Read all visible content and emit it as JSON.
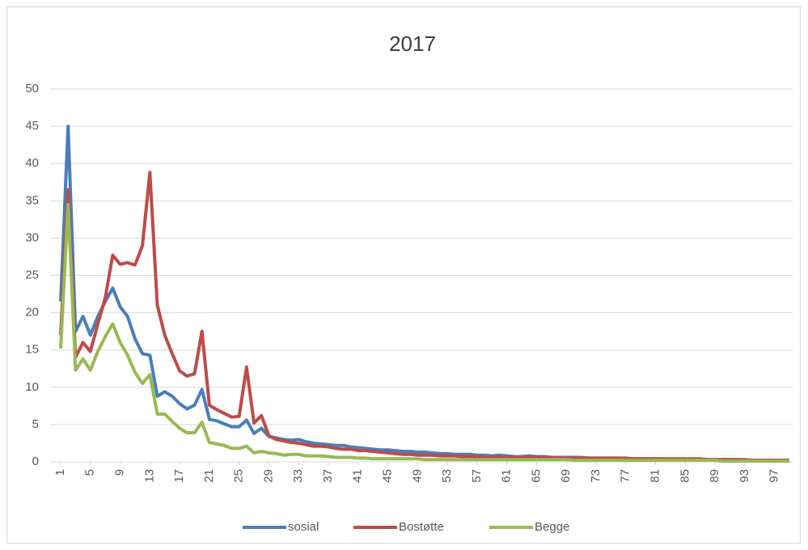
{
  "chart_data": {
    "type": "line",
    "title": "2017",
    "x": [
      1,
      2,
      3,
      4,
      5,
      6,
      7,
      8,
      9,
      10,
      11,
      12,
      13,
      14,
      15,
      16,
      17,
      18,
      19,
      20,
      21,
      22,
      23,
      24,
      25,
      26,
      27,
      28,
      29,
      30,
      31,
      32,
      33,
      34,
      35,
      36,
      37,
      38,
      39,
      40,
      41,
      42,
      43,
      44,
      45,
      46,
      47,
      48,
      49,
      50,
      51,
      52,
      53,
      54,
      55,
      56,
      57,
      58,
      59,
      60,
      61,
      62,
      63,
      64,
      65,
      66,
      67,
      68,
      69,
      70,
      71,
      72,
      73,
      74,
      75,
      76,
      77,
      78,
      79,
      80,
      81,
      82,
      83,
      84,
      85,
      86,
      87,
      88,
      89,
      90,
      91,
      92,
      93,
      94,
      95,
      96,
      97,
      98,
      99
    ],
    "xlim": [
      1,
      99
    ],
    "xticks": [
      1,
      5,
      9,
      13,
      17,
      21,
      25,
      29,
      33,
      37,
      41,
      45,
      49,
      53,
      57,
      61,
      65,
      69,
      73,
      77,
      81,
      85,
      89,
      93,
      97
    ],
    "ylim": [
      0,
      50
    ],
    "yticks": [
      0,
      5,
      10,
      15,
      20,
      25,
      30,
      35,
      40,
      45,
      50
    ],
    "grid": true,
    "legend": "bottom",
    "series": [
      {
        "name": "sosial",
        "color": "#4a7ebb",
        "values": [
          21.5,
          45,
          17.5,
          19.5,
          17,
          19.5,
          21.5,
          23.3,
          20.8,
          19.5,
          16.5,
          14.5,
          14.3,
          8.8,
          9.4,
          8.8,
          7.8,
          7.1,
          7.6,
          9.7,
          5.7,
          5.5,
          5.1,
          4.7,
          4.7,
          5.6,
          3.8,
          4.5,
          3.4,
          3.2,
          3.0,
          2.9,
          3.0,
          2.7,
          2.5,
          2.4,
          2.3,
          2.2,
          2.2,
          2.0,
          1.9,
          1.8,
          1.7,
          1.6,
          1.6,
          1.5,
          1.4,
          1.4,
          1.3,
          1.3,
          1.2,
          1.1,
          1.1,
          1.0,
          1.0,
          1.0,
          0.9,
          0.9,
          0.8,
          0.9,
          0.8,
          0.7,
          0.7,
          0.8,
          0.7,
          0.7,
          0.6,
          0.6,
          0.6,
          0.6,
          0.6,
          0.5,
          0.5,
          0.5,
          0.5,
          0.5,
          0.4,
          0.4,
          0.4,
          0.4,
          0.4,
          0.4,
          0.3,
          0.3,
          0.3,
          0.3,
          0.3,
          0.3,
          0.3,
          0.3,
          0.3,
          0.3,
          0.2,
          0.2,
          0.2,
          0.2,
          0.2,
          0.2,
          0.2
        ]
      },
      {
        "name": "Bostøtte",
        "color": "#be4b48",
        "values": [
          17,
          36.5,
          14,
          16,
          14.8,
          18.5,
          22,
          27.7,
          26.5,
          26.7,
          26.4,
          29,
          38.8,
          21,
          17,
          14.5,
          12.2,
          11.5,
          11.8,
          17.5,
          7.6,
          7,
          6.5,
          6,
          6.1,
          12.7,
          5.2,
          6.2,
          3.5,
          3,
          2.8,
          2.6,
          2.5,
          2.3,
          2.1,
          2.1,
          2.0,
          1.8,
          1.7,
          1.7,
          1.5,
          1.5,
          1.4,
          1.3,
          1.2,
          1.1,
          1.0,
          1.0,
          0.9,
          0.9,
          0.9,
          0.8,
          0.8,
          0.8,
          0.7,
          0.7,
          0.7,
          0.6,
          0.6,
          0.6,
          0.6,
          0.6,
          0.6,
          0.6,
          0.6,
          0.6,
          0.6,
          0.5,
          0.5,
          0.5,
          0.5,
          0.5,
          0.5,
          0.5,
          0.5,
          0.5,
          0.5,
          0.4,
          0.4,
          0.4,
          0.4,
          0.4,
          0.4,
          0.4,
          0.4,
          0.4,
          0.4,
          0.3,
          0.3,
          0.3,
          0.3,
          0.3,
          0.3,
          0.2,
          0.2,
          0.2,
          0.2,
          0.2,
          0.2
        ]
      },
      {
        "name": "Begge",
        "color": "#98b954",
        "values": [
          15.2,
          34.5,
          12.3,
          13.8,
          12.3,
          14.8,
          16.8,
          18.5,
          16,
          14.3,
          12,
          10.5,
          11.7,
          6.4,
          6.4,
          5.4,
          4.5,
          3.9,
          3.9,
          5.3,
          2.6,
          2.4,
          2.2,
          1.8,
          1.8,
          2.1,
          1.2,
          1.4,
          1.2,
          1.1,
          0.9,
          1.0,
          1.0,
          0.8,
          0.8,
          0.8,
          0.7,
          0.6,
          0.6,
          0.6,
          0.5,
          0.5,
          0.4,
          0.4,
          0.4,
          0.4,
          0.4,
          0.4,
          0.4,
          0.3,
          0.3,
          0.3,
          0.3,
          0.3,
          0.3,
          0.3,
          0.3,
          0.3,
          0.3,
          0.3,
          0.3,
          0.3,
          0.3,
          0.3,
          0.3,
          0.3,
          0.3,
          0.3,
          0.3,
          0.2,
          0.2,
          0.2,
          0.2,
          0.2,
          0.2,
          0.2,
          0.2,
          0.2,
          0.2,
          0.2,
          0.2,
          0.2,
          0.2,
          0.2,
          0.2,
          0.2,
          0.2,
          0.2,
          0.2,
          0.1,
          0.1,
          0.1,
          0.1,
          0.1,
          0.1,
          0.1,
          0.1,
          0.1,
          0.1
        ]
      }
    ]
  }
}
